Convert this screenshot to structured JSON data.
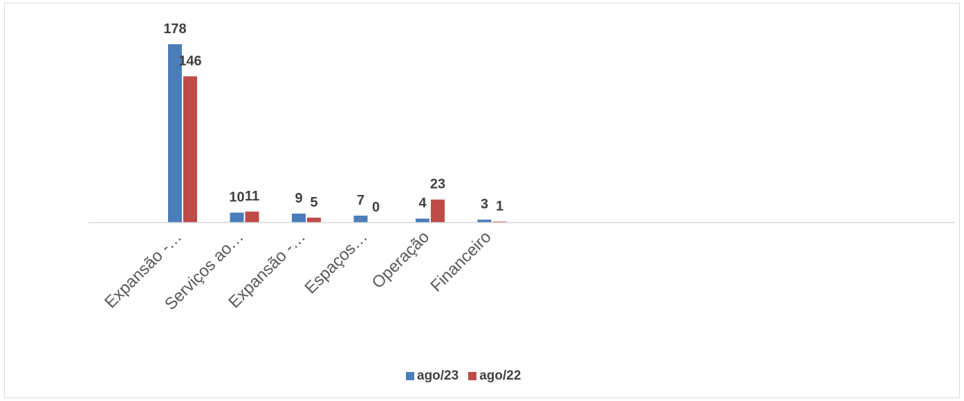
{
  "chart_data": {
    "type": "bar",
    "categories": [
      "Expansão -…",
      "Serviços ao…",
      "Expansão -…",
      "Espaços…",
      "Operação",
      "Financeiro"
    ],
    "series": [
      {
        "name": "ago/23",
        "color": "#4a7ebb",
        "values": [
          178,
          10,
          9,
          7,
          4,
          3
        ]
      },
      {
        "name": "ago/22",
        "color": "#be4b48",
        "values": [
          146,
          11,
          5,
          0,
          23,
          1
        ]
      }
    ],
    "title": "",
    "xlabel": "",
    "ylabel": "",
    "ylim": [
      0,
      178
    ],
    "grid": false,
    "legend_position": "bottom"
  }
}
